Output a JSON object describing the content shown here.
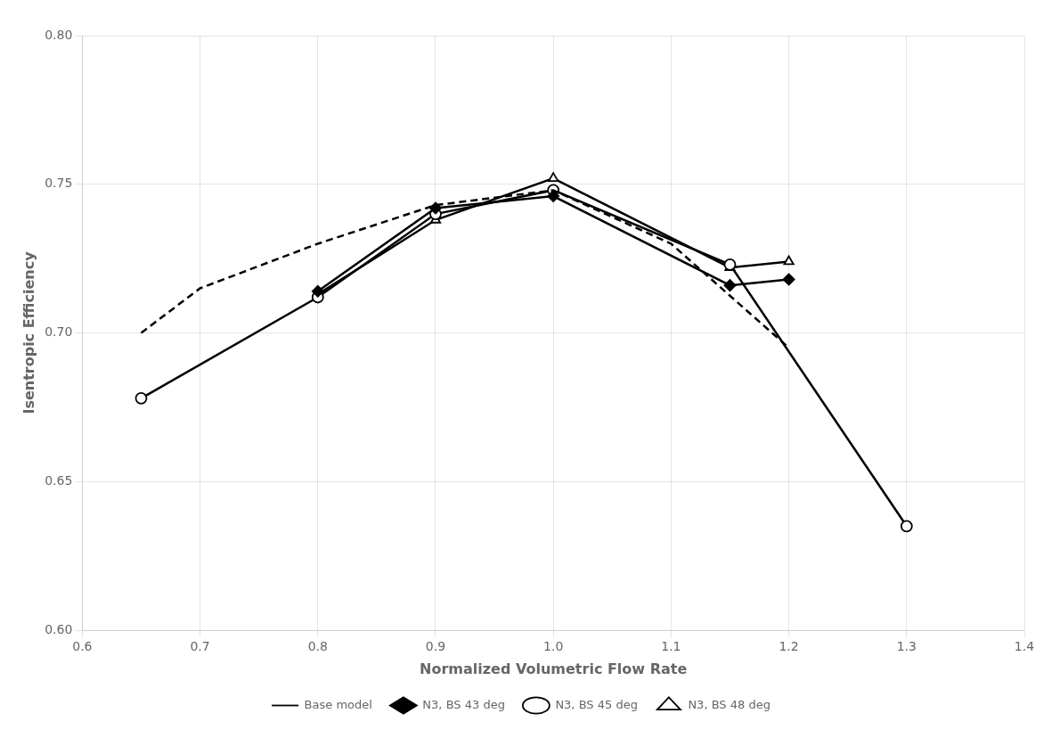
{
  "chart_data": {
    "type": "line",
    "x_label": "Normalized Volumetric Flow Rate",
    "y_label": "Isentropic Efficiency",
    "series": [
      {
        "name": "Base model",
        "color": "black",
        "line_style": "dashed",
        "x": [
          0.65,
          0.7,
          0.8,
          0.9,
          1.0,
          1.1,
          1.2
        ],
        "values": [
          0.7,
          0.715,
          0.73,
          0.743,
          0.748,
          0.73,
          0.695
        ]
      },
      {
        "name": "N3, BS 43 deg",
        "color": "black",
        "line_style": "solid",
        "marker": "diamond",
        "x": [
          0.8,
          0.9,
          1.0,
          1.15,
          1.2
        ],
        "values": [
          0.714,
          0.742,
          0.746,
          0.716,
          0.718
        ]
      },
      {
        "name": "N3, BS 45 deg",
        "color": "black",
        "line_style": "solid",
        "marker": "circle",
        "x": [
          0.65,
          0.8,
          0.9,
          1.0,
          1.15,
          1.3
        ],
        "values": [
          0.678,
          0.712,
          0.74,
          0.748,
          0.723,
          0.635
        ]
      },
      {
        "name": "N3, BS 48 deg",
        "color": "black",
        "line_style": "solid",
        "marker": "triangle",
        "x": [
          0.8,
          0.9,
          1.0,
          1.15,
          1.2
        ],
        "values": [
          0.713,
          0.738,
          0.752,
          0.722,
          0.724
        ]
      }
    ],
    "xlim": [
      0.6,
      1.4
    ],
    "ylim": [
      0.6,
      0.8
    ],
    "xticks": [
      0.6,
      0.7,
      0.8,
      0.9,
      {
        "value": 1,
        "label": "1.0"
      },
      1.1,
      1.2,
      1.3,
      1.4
    ],
    "yticks": [
      {
        "value": 0.6,
        "label": "0.60"
      },
      0.65,
      {
        "value": 0.7,
        "label": "0.70"
      },
      0.75,
      {
        "value": 0.8,
        "label": "0.80"
      }
    ],
    "grid": true,
    "legend": "bottom"
  }
}
